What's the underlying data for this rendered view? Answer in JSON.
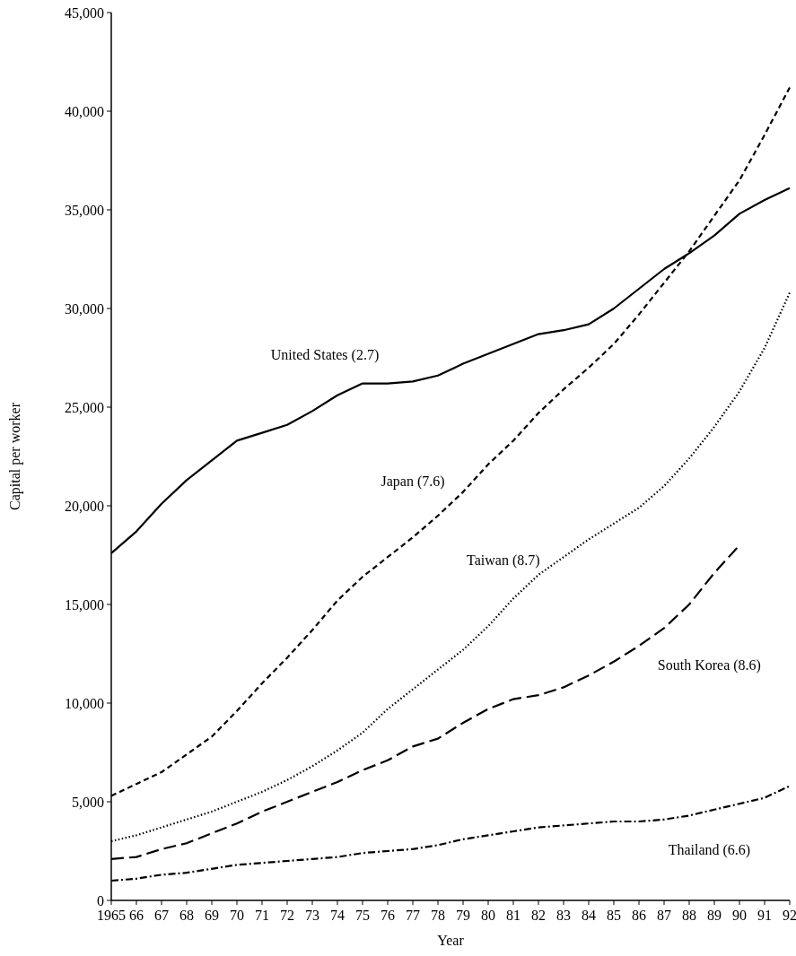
{
  "chart_data": {
    "type": "line",
    "xlabel": "Year",
    "ylabel": "Capital per worker",
    "x": [
      1965,
      1966,
      1967,
      1968,
      1969,
      1970,
      1971,
      1972,
      1973,
      1974,
      1975,
      1976,
      1977,
      1978,
      1979,
      1980,
      1981,
      1982,
      1983,
      1984,
      1985,
      1986,
      1987,
      1988,
      1989,
      1990,
      1991,
      1992
    ],
    "xlim": [
      1965,
      1992
    ],
    "xticks": [
      1965,
      {
        "value": 1966,
        "label": "66"
      },
      {
        "value": 1967,
        "label": "67"
      },
      {
        "value": 1968,
        "label": "68"
      },
      {
        "value": 1969,
        "label": "69"
      },
      {
        "value": 1970,
        "label": "70"
      },
      {
        "value": 1971,
        "label": "71"
      },
      {
        "value": 1972,
        "label": "72"
      },
      {
        "value": 1973,
        "label": "73"
      },
      {
        "value": 1974,
        "label": "74"
      },
      {
        "value": 1975,
        "label": "75"
      },
      {
        "value": 1976,
        "label": "76"
      },
      {
        "value": 1977,
        "label": "77"
      },
      {
        "value": 1978,
        "label": "78"
      },
      {
        "value": 1979,
        "label": "79"
      },
      {
        "value": 1980,
        "label": "80"
      },
      {
        "value": 1981,
        "label": "81"
      },
      {
        "value": 1982,
        "label": "82"
      },
      {
        "value": 1983,
        "label": "83"
      },
      {
        "value": 1984,
        "label": "84"
      },
      {
        "value": 1985,
        "label": "85"
      },
      {
        "value": 1986,
        "label": "86"
      },
      {
        "value": 1987,
        "label": "87"
      },
      {
        "value": 1988,
        "label": "88"
      },
      {
        "value": 1989,
        "label": "89"
      },
      {
        "value": 1990,
        "label": "90"
      },
      {
        "value": 1991,
        "label": "91"
      },
      {
        "value": 1992,
        "label": "92"
      }
    ],
    "ylim": [
      0,
      45000
    ],
    "yticks": [
      {
        "value": 0,
        "label": "0"
      },
      {
        "value": 5000,
        "label": "5,000"
      },
      {
        "value": 10000,
        "label": "10,000"
      },
      {
        "value": 15000,
        "label": "15,000"
      },
      {
        "value": 20000,
        "label": "20,000"
      },
      {
        "value": 25000,
        "label": "25,000"
      },
      {
        "value": 30000,
        "label": "30,000"
      },
      {
        "value": 35000,
        "label": "35,000"
      },
      {
        "value": 40000,
        "label": "40,000"
      },
      {
        "value": 45000,
        "label": "45,000"
      }
    ],
    "grid": false,
    "marker": "none",
    "series": [
      {
        "name": "United States (2.7)",
        "color": "#000000",
        "line_style": "solid",
        "values": [
          17600,
          18700,
          20100,
          21300,
          22300,
          23300,
          23700,
          24100,
          24800,
          25600,
          26200,
          26200,
          26300,
          26600,
          27200,
          27700,
          28200,
          28700,
          28900,
          29200,
          30000,
          31000,
          32000,
          32800,
          33700,
          34800,
          35500,
          36100
        ]
      },
      {
        "name": "Japan (7.6)",
        "color": "#000000",
        "line_style": "dashed",
        "values": [
          5300,
          5900,
          6500,
          7400,
          8300,
          9600,
          11000,
          12300,
          13700,
          15200,
          16400,
          17400,
          18400,
          19500,
          20700,
          22100,
          23300,
          24700,
          25900,
          27000,
          28200,
          29700,
          31300,
          32900,
          34700,
          36500,
          38800,
          41200
        ]
      },
      {
        "name": "Taiwan (8.7)",
        "color": "#000000",
        "line_style": "dotted",
        "values": [
          3000,
          3300,
          3700,
          4100,
          4500,
          5000,
          5500,
          6100,
          6800,
          7600,
          8500,
          9700,
          10700,
          11700,
          12700,
          13900,
          15300,
          16500,
          17400,
          18300,
          19100,
          19900,
          21000,
          22400,
          24000,
          25800,
          28000,
          30800
        ]
      },
      {
        "name": "South Korea (8.6)",
        "color": "#000000",
        "line_style": "dashed",
        "values": [
          2100,
          2200,
          2600,
          2900,
          3400,
          3900,
          4500,
          5000,
          5500,
          6000,
          6600,
          7100,
          7800,
          8200,
          9000,
          9700,
          10200,
          10400,
          10800,
          11400,
          12100,
          12900,
          13800,
          15000,
          16600,
          18000,
          null,
          null
        ]
      },
      {
        "name": "Thailand (6.6)",
        "color": "#000000",
        "line_style": "dashed",
        "values": [
          1000,
          1100,
          1300,
          1400,
          1600,
          1800,
          1900,
          2000,
          2100,
          2200,
          2400,
          2500,
          2600,
          2800,
          3100,
          3300,
          3500,
          3700,
          3800,
          3900,
          4000,
          4000,
          4100,
          4300,
          4600,
          4900,
          5200,
          5800
        ]
      }
    ]
  }
}
